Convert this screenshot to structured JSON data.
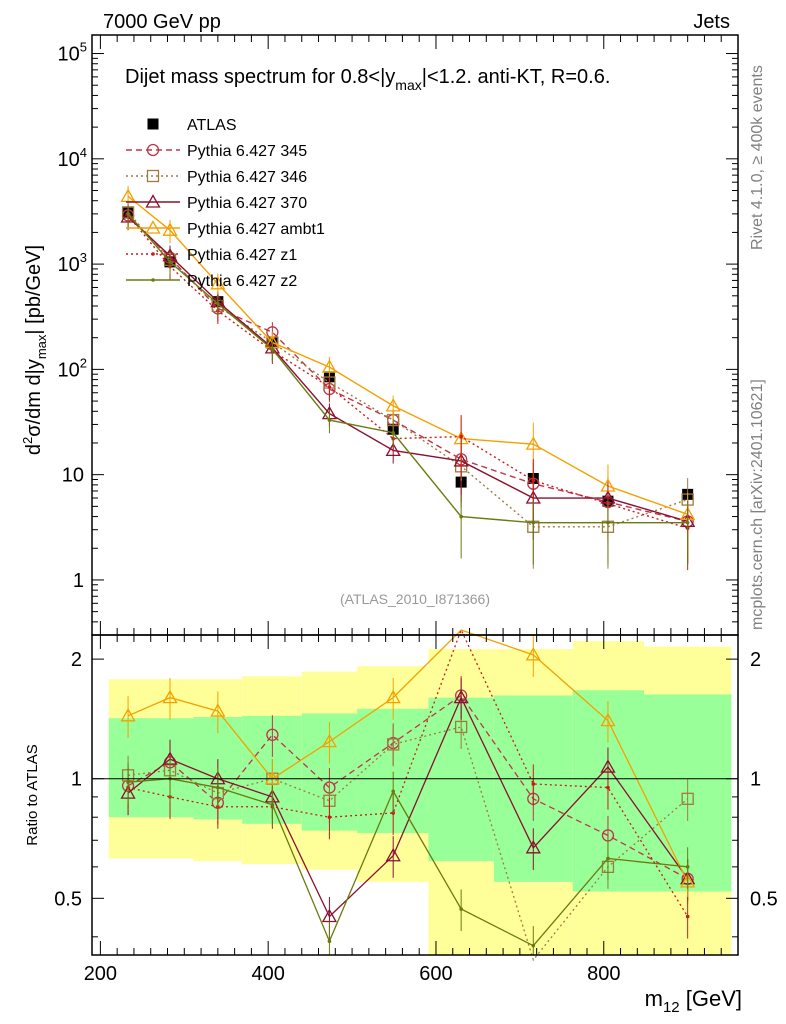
{
  "header": {
    "left": "7000 GeV pp",
    "right": "Jets"
  },
  "side_labels": {
    "rivet": "Rivet 4.1.0, ≥ 400k events",
    "mcplots": "mcplots.cern.ch [arXiv:2401.10621]"
  },
  "chart_data": [
    {
      "type": "line",
      "panel": "main",
      "title": "Dijet mass spectrum for 0.8<|y_max|<1.2.  anti-KT, R=0.6.",
      "title_parts": {
        "prefix": "Dijet mass spectrum for 0.8<|y",
        "sub": "max",
        "suffix": "|<1.2.  anti-KT, R=0.6."
      },
      "ylabel": "d²σ/dm d|y_max| [pb/GeV]",
      "ylabel_parts": {
        "a": "d",
        "sup": "2",
        "b": "σ/dm d|y",
        "sub": "max",
        "c": "| [pb/GeV]"
      },
      "yscale": "log",
      "ylim": [
        0.3,
        150000
      ],
      "y_ticks": [
        {
          "value": 1,
          "label": "1"
        },
        {
          "value": 10,
          "label": "10"
        },
        {
          "value": 100,
          "label": "10",
          "exp": "2"
        },
        {
          "value": 1000,
          "label": "10",
          "exp": "3"
        },
        {
          "value": 10000,
          "label": "10",
          "exp": "4"
        },
        {
          "value": 100000,
          "label": "10",
          "exp": "5"
        }
      ],
      "watermark": "(ATLAS_2010_I871366)",
      "legend_position": "top-left",
      "x": [
        233,
        283,
        340,
        405,
        473,
        549,
        630,
        716,
        805,
        900
      ],
      "x_edges": [
        210,
        255,
        311,
        369,
        440,
        506,
        591,
        669,
        763,
        848,
        952
      ],
      "series": [
        {
          "name": "ATLAS",
          "color": "#000000",
          "marker": "filled-square",
          "line": "none",
          "values": [
            3050,
            1050,
            440,
            180,
            85,
            27,
            8.5,
            9.2,
            5.6,
            6.5
          ]
        },
        {
          "name": "Pythia 6.427 345",
          "color": "#c0344a",
          "marker": "circle",
          "line": "dashed",
          "values": [
            2900,
            1150,
            380,
            225,
            65,
            33,
            14,
            8.2,
            5.5,
            3.6
          ]
        },
        {
          "name": "Pythia 6.427 346",
          "color": "#a07a3c",
          "marker": "open-square",
          "line": "dotted",
          "values": [
            3100,
            1100,
            400,
            180,
            75,
            33,
            12,
            3.2,
            3.2,
            5.8
          ]
        },
        {
          "name": "Pythia 6.427 370",
          "color": "#8b1030",
          "marker": "triangle",
          "line": "solid",
          "values": [
            2800,
            1200,
            440,
            160,
            38,
            17,
            13.5,
            6,
            6,
            3.6
          ]
        },
        {
          "name": "Pythia 6.427 ambt1",
          "color": "#f5a000",
          "marker": "triangle",
          "line": "solid",
          "values": [
            4400,
            2100,
            650,
            180,
            105,
            45,
            22,
            19.5,
            7.8,
            4.2
          ]
        },
        {
          "name": "Pythia 6.427 z1",
          "color": "#cc1a1a",
          "marker": "dot",
          "line": "dotted",
          "values": [
            2900,
            950,
            360,
            150,
            68,
            22,
            23,
            8.8,
            5.3,
            3.1
          ]
        },
        {
          "name": "Pythia 6.427 z2",
          "color": "#6b7a10",
          "marker": "dot",
          "line": "solid",
          "values": [
            3000,
            1050,
            420,
            155,
            33,
            25,
            4,
            3.5,
            3.5,
            3.5
          ]
        }
      ]
    },
    {
      "type": "line",
      "panel": "ratio",
      "ylabel": "Ratio to ATLAS",
      "xlabel": "m₁₂ [GeV]",
      "xlabel_parts": {
        "a": "m",
        "sub": "12",
        "b": " [GeV]"
      },
      "xlim": [
        190,
        960
      ],
      "ylim": [
        0.36,
        2.3
      ],
      "x_ticks": [
        200,
        400,
        600,
        800
      ],
      "y_ticks_left": [
        {
          "value": 0.5,
          "label": "0.5"
        },
        {
          "value": 1,
          "label": "1"
        },
        {
          "value": 2,
          "label": "2"
        }
      ],
      "y_ticks_right": [
        {
          "value": 0.5,
          "label": "0.5"
        },
        {
          "value": 1,
          "label": "1"
        },
        {
          "value": 2,
          "label": "2"
        }
      ],
      "bands": {
        "edges": [
          210,
          255,
          311,
          369,
          440,
          506,
          591,
          669,
          763,
          848,
          952
        ],
        "yellow_low": [
          0.63,
          0.63,
          0.62,
          0.61,
          0.59,
          0.55,
          0.36,
          0.36,
          0.36,
          0.36
        ],
        "yellow_high": [
          1.78,
          1.78,
          1.78,
          1.81,
          1.86,
          1.92,
          2.12,
          2.12,
          2.22,
          2.15
        ],
        "green_low": [
          0.8,
          0.8,
          0.79,
          0.77,
          0.74,
          0.73,
          0.62,
          0.55,
          0.52,
          0.52
        ],
        "green_high": [
          1.42,
          1.42,
          1.43,
          1.44,
          1.46,
          1.5,
          1.6,
          1.62,
          1.67,
          1.63
        ],
        "colors": {
          "yellow": "#ffff99",
          "green": "#99ff99"
        }
      },
      "series": [
        {
          "name": "Pythia 6.427 345",
          "values": [
            0.96,
            1.1,
            0.87,
            1.29,
            0.95,
            1.23,
            1.62,
            0.89,
            0.72,
            0.56
          ]
        },
        {
          "name": "Pythia 6.427 346",
          "values": [
            1.02,
            1.05,
            0.92,
            1.0,
            0.88,
            1.22,
            1.35,
            0.35,
            0.6,
            0.89
          ]
        },
        {
          "name": "Pythia 6.427 370",
          "values": [
            0.92,
            1.12,
            1.0,
            0.9,
            0.45,
            0.64,
            1.6,
            0.67,
            1.07,
            0.56
          ]
        },
        {
          "name": "Pythia 6.427 ambt1",
          "values": [
            1.44,
            1.6,
            1.48,
            1.0,
            1.24,
            1.6,
            2.6,
            2.05,
            1.4,
            0.55
          ]
        },
        {
          "name": "Pythia 6.427 z1",
          "values": [
            0.95,
            0.9,
            0.85,
            0.85,
            0.8,
            0.82,
            2.7,
            0.97,
            0.95,
            0.45
          ]
        },
        {
          "name": "Pythia 6.427 z2",
          "values": [
            0.98,
            1.0,
            0.95,
            0.86,
            0.39,
            0.93,
            0.47,
            0.38,
            0.63,
            0.6
          ]
        }
      ]
    }
  ]
}
